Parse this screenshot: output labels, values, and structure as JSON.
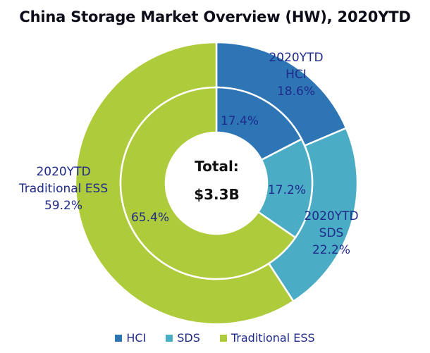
{
  "title": "China Storage Market Overview (HW), 2020YTD",
  "center": {
    "line1": "Total:",
    "line2": "$3.3B"
  },
  "colors": {
    "HCI": "#2e75b6",
    "SDS": "#4bacc6",
    "Traditional ESS": "#aecb3b",
    "label_text": "#1f2a8a"
  },
  "outer_labels": {
    "hci": {
      "l1": "2020YTD",
      "l2": "HCI",
      "l3": "18.6%"
    },
    "sds": {
      "l1": "2020YTD",
      "l2": "SDS",
      "l3": "22.2%"
    },
    "ess": {
      "l1": "2020YTD",
      "l2": "Traditional ESS",
      "l3": "59.2%"
    }
  },
  "inner_labels": {
    "hci": "17.4%",
    "sds": "17.2%",
    "ess": "65.4%"
  },
  "legend": [
    {
      "label": "HCI"
    },
    {
      "label": "SDS"
    },
    {
      "label": "Traditional ESS"
    }
  ],
  "chart_data": {
    "type": "pie",
    "subtype": "nested-donut",
    "title": "China Storage Market Overview (HW), 2020YTD",
    "categories": [
      "HCI",
      "SDS",
      "Traditional ESS"
    ],
    "series": [
      {
        "name": "2020YTD (outer ring)",
        "values": [
          18.6,
          22.2,
          59.2
        ]
      },
      {
        "name": "inner ring",
        "values": [
          17.4,
          17.2,
          65.4
        ]
      }
    ],
    "center_annotation": "Total: $3.3B",
    "legend_position": "bottom",
    "unit": "%"
  }
}
